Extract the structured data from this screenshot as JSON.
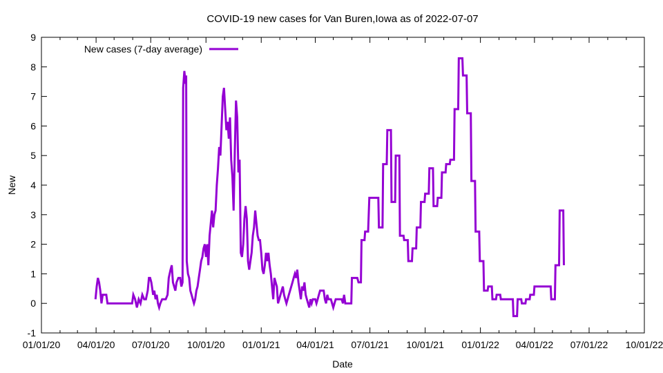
{
  "chart_data": {
    "type": "line",
    "title": "COVID-19 new cases for Van Buren,Iowa as of 2022-07-07",
    "xlabel": "Date",
    "ylabel": "New",
    "xlim": [
      "2020-01-01",
      "2022-10-01"
    ],
    "ylim": [
      -1,
      9
    ],
    "grid": false,
    "legend_position": "top-left",
    "x_tick_labels": [
      "01/01/20",
      "04/01/20",
      "07/01/20",
      "10/01/20",
      "01/01/21",
      "04/01/21",
      "07/01/21",
      "10/01/21",
      "01/01/22",
      "04/01/22",
      "07/01/22",
      "10/01/22"
    ],
    "y_tick_labels": [
      "-1",
      "0",
      "1",
      "2",
      "3",
      "4",
      "5",
      "6",
      "7",
      "8",
      "9"
    ],
    "series": [
      {
        "name": "New cases (7-day average)",
        "color": "#9400d3",
        "points": [
          [
            "2020-03-31",
            0.14
          ],
          [
            "2020-04-02",
            0.57
          ],
          [
            "2020-04-04",
            0.86
          ],
          [
            "2020-04-06",
            0.71
          ],
          [
            "2020-04-08",
            0.43
          ],
          [
            "2020-04-10",
            0.0
          ],
          [
            "2020-04-12",
            0.29
          ],
          [
            "2020-04-18",
            0.29
          ],
          [
            "2020-04-20",
            0.0
          ],
          [
            "2020-05-31",
            0.0
          ],
          [
            "2020-06-02",
            0.29
          ],
          [
            "2020-06-05",
            0.14
          ],
          [
            "2020-06-08",
            -0.14
          ],
          [
            "2020-06-11",
            0.14
          ],
          [
            "2020-06-14",
            0.0
          ],
          [
            "2020-06-17",
            0.29
          ],
          [
            "2020-06-20",
            0.14
          ],
          [
            "2020-06-23",
            0.14
          ],
          [
            "2020-06-26",
            0.43
          ],
          [
            "2020-06-28",
            0.86
          ],
          [
            "2020-06-30",
            0.86
          ],
          [
            "2020-07-02",
            0.71
          ],
          [
            "2020-07-05",
            0.29
          ],
          [
            "2020-07-07",
            0.43
          ],
          [
            "2020-07-09",
            0.14
          ],
          [
            "2020-07-11",
            0.29
          ],
          [
            "2020-07-13",
            0.0
          ],
          [
            "2020-07-15",
            -0.14
          ],
          [
            "2020-07-17",
            0.0
          ],
          [
            "2020-07-20",
            0.14
          ],
          [
            "2020-07-26",
            0.14
          ],
          [
            "2020-07-29",
            0.29
          ],
          [
            "2020-07-31",
            0.86
          ],
          [
            "2020-08-03",
            1.14
          ],
          [
            "2020-08-05",
            1.29
          ],
          [
            "2020-08-07",
            0.71
          ],
          [
            "2020-08-09",
            0.57
          ],
          [
            "2020-08-11",
            0.43
          ],
          [
            "2020-08-13",
            0.71
          ],
          [
            "2020-08-16",
            0.86
          ],
          [
            "2020-08-19",
            0.86
          ],
          [
            "2020-08-21",
            0.57
          ],
          [
            "2020-08-23",
            0.71
          ],
          [
            "2020-08-24",
            7.29
          ],
          [
            "2020-08-26",
            7.86
          ],
          [
            "2020-08-28",
            7.43
          ],
          [
            "2020-08-29",
            7.71
          ],
          [
            "2020-08-30",
            1.43
          ],
          [
            "2020-09-01",
            1.0
          ],
          [
            "2020-09-03",
            0.86
          ],
          [
            "2020-09-05",
            0.43
          ],
          [
            "2020-09-07",
            0.29
          ],
          [
            "2020-09-09",
            0.14
          ],
          [
            "2020-09-11",
            0.0
          ],
          [
            "2020-09-13",
            0.14
          ],
          [
            "2020-09-15",
            0.43
          ],
          [
            "2020-09-17",
            0.57
          ],
          [
            "2020-09-19",
            0.86
          ],
          [
            "2020-09-21",
            1.14
          ],
          [
            "2020-09-23",
            1.43
          ],
          [
            "2020-09-25",
            1.57
          ],
          [
            "2020-09-27",
            1.86
          ],
          [
            "2020-09-29",
            2.0
          ],
          [
            "2020-10-01",
            1.57
          ],
          [
            "2020-10-03",
            2.0
          ],
          [
            "2020-10-05",
            1.29
          ],
          [
            "2020-10-07",
            2.29
          ],
          [
            "2020-10-09",
            2.71
          ],
          [
            "2020-10-11",
            3.14
          ],
          [
            "2020-10-13",
            2.57
          ],
          [
            "2020-10-15",
            3.0
          ],
          [
            "2020-10-17",
            3.14
          ],
          [
            "2020-10-19",
            4.0
          ],
          [
            "2020-10-21",
            4.57
          ],
          [
            "2020-10-23",
            5.29
          ],
          [
            "2020-10-25",
            5.0
          ],
          [
            "2020-10-27",
            6.0
          ],
          [
            "2020-10-29",
            7.0
          ],
          [
            "2020-10-31",
            7.29
          ],
          [
            "2020-11-02",
            6.57
          ],
          [
            "2020-11-04",
            5.86
          ],
          [
            "2020-11-06",
            6.14
          ],
          [
            "2020-11-08",
            5.57
          ],
          [
            "2020-11-10",
            6.29
          ],
          [
            "2020-11-12",
            4.86
          ],
          [
            "2020-11-14",
            4.29
          ],
          [
            "2020-11-16",
            3.14
          ],
          [
            "2020-11-18",
            5.14
          ],
          [
            "2020-11-20",
            6.86
          ],
          [
            "2020-11-22",
            6.29
          ],
          [
            "2020-11-24",
            4.43
          ],
          [
            "2020-11-26",
            4.86
          ],
          [
            "2020-11-28",
            1.71
          ],
          [
            "2020-11-30",
            1.57
          ],
          [
            "2020-12-02",
            2.0
          ],
          [
            "2020-12-04",
            2.86
          ],
          [
            "2020-12-06",
            3.29
          ],
          [
            "2020-12-08",
            2.86
          ],
          [
            "2020-12-10",
            1.43
          ],
          [
            "2020-12-12",
            1.14
          ],
          [
            "2020-12-14",
            1.43
          ],
          [
            "2020-12-16",
            1.71
          ],
          [
            "2020-12-18",
            2.29
          ],
          [
            "2020-12-20",
            2.57
          ],
          [
            "2020-12-22",
            3.14
          ],
          [
            "2020-12-24",
            2.71
          ],
          [
            "2020-12-26",
            2.29
          ],
          [
            "2020-12-28",
            2.14
          ],
          [
            "2020-12-30",
            2.14
          ],
          [
            "2021-01-01",
            1.71
          ],
          [
            "2021-01-03",
            1.14
          ],
          [
            "2021-01-05",
            1.0
          ],
          [
            "2021-01-07",
            1.29
          ],
          [
            "2021-01-09",
            1.71
          ],
          [
            "2021-01-11",
            1.43
          ],
          [
            "2021-01-13",
            1.71
          ],
          [
            "2021-01-15",
            1.29
          ],
          [
            "2021-01-17",
            1.0
          ],
          [
            "2021-01-19",
            0.57
          ],
          [
            "2021-01-21",
            0.14
          ],
          [
            "2021-01-23",
            0.86
          ],
          [
            "2021-01-25",
            0.71
          ],
          [
            "2021-01-27",
            0.57
          ],
          [
            "2021-01-29",
            0.0
          ],
          [
            "2021-01-31",
            0.14
          ],
          [
            "2021-02-02",
            0.29
          ],
          [
            "2021-02-04",
            0.43
          ],
          [
            "2021-02-06",
            0.57
          ],
          [
            "2021-02-08",
            0.29
          ],
          [
            "2021-02-10",
            0.14
          ],
          [
            "2021-02-12",
            0.0
          ],
          [
            "2021-02-14",
            0.14
          ],
          [
            "2021-02-16",
            0.29
          ],
          [
            "2021-02-18",
            0.43
          ],
          [
            "2021-02-20",
            0.57
          ],
          [
            "2021-02-22",
            0.71
          ],
          [
            "2021-02-24",
            0.86
          ],
          [
            "2021-02-26",
            1.0
          ],
          [
            "2021-02-28",
            0.86
          ],
          [
            "2021-03-02",
            1.14
          ],
          [
            "2021-03-04",
            0.71
          ],
          [
            "2021-03-06",
            0.43
          ],
          [
            "2021-03-08",
            0.14
          ],
          [
            "2021-03-10",
            0.57
          ],
          [
            "2021-03-12",
            0.43
          ],
          [
            "2021-03-14",
            0.71
          ],
          [
            "2021-03-16",
            0.29
          ],
          [
            "2021-03-18",
            0.14
          ],
          [
            "2021-03-20",
            0.0
          ],
          [
            "2021-03-22",
            -0.14
          ],
          [
            "2021-03-24",
            0.14
          ],
          [
            "2021-03-26",
            0.0
          ],
          [
            "2021-03-28",
            0.14
          ],
          [
            "2021-04-01",
            0.14
          ],
          [
            "2021-04-03",
            0.0
          ],
          [
            "2021-04-05",
            0.14
          ],
          [
            "2021-04-07",
            0.29
          ],
          [
            "2021-04-09",
            0.43
          ],
          [
            "2021-04-15",
            0.43
          ],
          [
            "2021-04-17",
            0.14
          ],
          [
            "2021-04-19",
            0.0
          ],
          [
            "2021-04-21",
            0.29
          ],
          [
            "2021-04-23",
            0.14
          ],
          [
            "2021-04-27",
            0.14
          ],
          [
            "2021-04-29",
            0.0
          ],
          [
            "2021-05-01",
            -0.14
          ],
          [
            "2021-05-03",
            0.0
          ],
          [
            "2021-05-05",
            0.14
          ],
          [
            "2021-05-15",
            0.14
          ],
          [
            "2021-05-17",
            0.0
          ],
          [
            "2021-05-19",
            0.29
          ],
          [
            "2021-05-21",
            0.0
          ],
          [
            "2021-05-31",
            0.0
          ],
          [
            "2021-06-01",
            0.86
          ],
          [
            "2021-06-10",
            0.86
          ],
          [
            "2021-06-12",
            0.71
          ],
          [
            "2021-06-16",
            0.71
          ],
          [
            "2021-06-17",
            2.14
          ],
          [
            "2021-06-22",
            2.14
          ],
          [
            "2021-06-23",
            2.43
          ],
          [
            "2021-06-28",
            2.43
          ],
          [
            "2021-06-30",
            3.57
          ],
          [
            "2021-07-15",
            3.57
          ],
          [
            "2021-07-16",
            2.57
          ],
          [
            "2021-07-22",
            2.57
          ],
          [
            "2021-07-23",
            4.71
          ],
          [
            "2021-07-29",
            4.71
          ],
          [
            "2021-07-30",
            5.86
          ],
          [
            "2021-08-05",
            5.86
          ],
          [
            "2021-08-06",
            3.43
          ],
          [
            "2021-08-12",
            3.43
          ],
          [
            "2021-08-13",
            5.0
          ],
          [
            "2021-08-19",
            5.0
          ],
          [
            "2021-08-20",
            2.29
          ],
          [
            "2021-08-26",
            2.29
          ],
          [
            "2021-08-27",
            2.14
          ],
          [
            "2021-09-02",
            2.14
          ],
          [
            "2021-09-03",
            1.43
          ],
          [
            "2021-09-09",
            1.43
          ],
          [
            "2021-09-10",
            1.86
          ],
          [
            "2021-09-16",
            1.86
          ],
          [
            "2021-09-17",
            2.57
          ],
          [
            "2021-09-23",
            2.57
          ],
          [
            "2021-09-24",
            3.43
          ],
          [
            "2021-09-30",
            3.43
          ],
          [
            "2021-10-01",
            3.71
          ],
          [
            "2021-10-07",
            3.71
          ],
          [
            "2021-10-08",
            4.57
          ],
          [
            "2021-10-14",
            4.57
          ],
          [
            "2021-10-15",
            3.29
          ],
          [
            "2021-10-21",
            3.29
          ],
          [
            "2021-10-22",
            3.57
          ],
          [
            "2021-10-28",
            3.57
          ],
          [
            "2021-10-29",
            4.43
          ],
          [
            "2021-11-04",
            4.43
          ],
          [
            "2021-11-05",
            4.71
          ],
          [
            "2021-11-11",
            4.71
          ],
          [
            "2021-11-12",
            4.86
          ],
          [
            "2021-11-18",
            4.86
          ],
          [
            "2021-11-19",
            6.57
          ],
          [
            "2021-11-25",
            6.57
          ],
          [
            "2021-11-26",
            8.29
          ],
          [
            "2021-12-02",
            8.29
          ],
          [
            "2021-12-03",
            7.71
          ],
          [
            "2021-12-09",
            7.71
          ],
          [
            "2021-12-10",
            6.43
          ],
          [
            "2021-12-16",
            6.43
          ],
          [
            "2021-12-17",
            4.14
          ],
          [
            "2021-12-23",
            4.14
          ],
          [
            "2021-12-24",
            2.43
          ],
          [
            "2021-12-30",
            2.43
          ],
          [
            "2021-12-31",
            1.43
          ],
          [
            "2022-01-06",
            1.43
          ],
          [
            "2022-01-07",
            0.43
          ],
          [
            "2022-01-13",
            0.43
          ],
          [
            "2022-01-14",
            0.57
          ],
          [
            "2022-01-20",
            0.57
          ],
          [
            "2022-01-21",
            0.14
          ],
          [
            "2022-01-27",
            0.14
          ],
          [
            "2022-01-28",
            0.29
          ],
          [
            "2022-02-03",
            0.29
          ],
          [
            "2022-02-04",
            0.14
          ],
          [
            "2022-02-24",
            0.14
          ],
          [
            "2022-02-25",
            -0.43
          ],
          [
            "2022-03-03",
            -0.43
          ],
          [
            "2022-03-04",
            0.14
          ],
          [
            "2022-03-10",
            0.14
          ],
          [
            "2022-03-11",
            0.0
          ],
          [
            "2022-03-17",
            0.0
          ],
          [
            "2022-03-18",
            0.14
          ],
          [
            "2022-03-24",
            0.14
          ],
          [
            "2022-03-25",
            0.29
          ],
          [
            "2022-03-31",
            0.29
          ],
          [
            "2022-04-01",
            0.57
          ],
          [
            "2022-04-28",
            0.57
          ],
          [
            "2022-04-29",
            0.14
          ],
          [
            "2022-05-05",
            0.14
          ],
          [
            "2022-05-06",
            1.29
          ],
          [
            "2022-05-12",
            1.29
          ],
          [
            "2022-05-13",
            3.14
          ],
          [
            "2022-05-19",
            3.14
          ],
          [
            "2022-05-20",
            1.29
          ]
        ]
      }
    ]
  }
}
